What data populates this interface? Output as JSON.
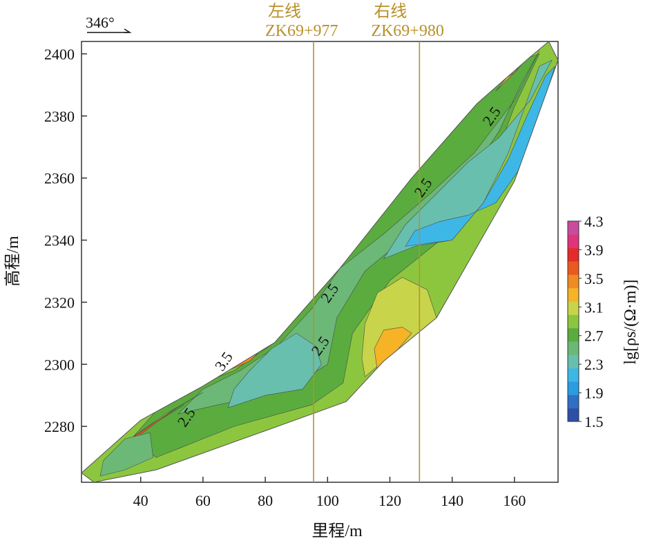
{
  "chart_data": {
    "type": "heatmap",
    "xlabel": "里程/m",
    "ylabel": "高程/m",
    "xlim": [
      21,
      174
    ],
    "ylim": [
      2262,
      2404
    ],
    "xticks": [
      40,
      60,
      80,
      100,
      120,
      140,
      160
    ],
    "yticks": [
      2280,
      2300,
      2320,
      2340,
      2360,
      2380,
      2400
    ],
    "direction_label": "346°",
    "survey_lines": [
      {
        "name": "左线",
        "station": "ZK69+977",
        "x": 95.5
      },
      {
        "name": "右线",
        "station": "ZK69+980",
        "x": 129.5
      }
    ],
    "colorbar": {
      "label": "lg[ρs/(Ω·m)]",
      "ticks": [
        "4.3",
        "3.9",
        "3.5",
        "3.1",
        "2.7",
        "2.3",
        "1.9",
        "1.5"
      ],
      "levels": [
        {
          "value": 1.5,
          "color": "#2d4fa8"
        },
        {
          "value": 1.7,
          "color": "#2f6fc4"
        },
        {
          "value": 1.9,
          "color": "#2a9ce0"
        },
        {
          "value": 2.1,
          "color": "#3db7e6"
        },
        {
          "value": 2.3,
          "color": "#68bfae"
        },
        {
          "value": 2.5,
          "color": "#6cb877"
        },
        {
          "value": 2.7,
          "color": "#5aac3e"
        },
        {
          "value": 2.9,
          "color": "#8cc63f"
        },
        {
          "value": 3.1,
          "color": "#c8d44a"
        },
        {
          "value": 3.3,
          "color": "#f5b325"
        },
        {
          "value": 3.5,
          "color": "#f08a22"
        },
        {
          "value": 3.7,
          "color": "#ea5a20"
        },
        {
          "value": 3.9,
          "color": "#e52a2a"
        },
        {
          "value": 4.1,
          "color": "#e0337a"
        },
        {
          "value": 4.3,
          "color": "#c94a9e"
        }
      ]
    },
    "contour_labels": [
      {
        "text": "2.5",
        "x": 154,
        "y": 2379
      },
      {
        "text": "2.5",
        "x": 132,
        "y": 2356
      },
      {
        "text": "2.5",
        "x": 102,
        "y": 2322
      },
      {
        "text": "2.5",
        "x": 99,
        "y": 2305
      },
      {
        "text": "3.5",
        "x": 68,
        "y": 2300
      },
      {
        "text": "2.5",
        "x": 56,
        "y": 2282
      }
    ],
    "section_outline": [
      [
        21,
        2265
      ],
      [
        25,
        2262
      ],
      [
        45,
        2266
      ],
      [
        95,
        2284
      ],
      [
        106,
        2288
      ],
      [
        118,
        2301
      ],
      [
        135,
        2315
      ],
      [
        160,
        2359
      ],
      [
        174,
        2398
      ],
      [
        171,
        2404
      ],
      [
        165,
        2399
      ],
      [
        148,
        2384
      ],
      [
        127,
        2360
      ],
      [
        104,
        2331
      ],
      [
        83,
        2307
      ],
      [
        60,
        2293
      ],
      [
        40,
        2282
      ],
      [
        21,
        2265
      ]
    ],
    "regions": [
      {
        "level": 2.9,
        "points": [
          [
            21,
            2265
          ],
          [
            25,
            2262
          ],
          [
            45,
            2266
          ],
          [
            95,
            2284
          ],
          [
            106,
            2288
          ],
          [
            118,
            2301
          ],
          [
            135,
            2315
          ],
          [
            160,
            2359
          ],
          [
            174,
            2398
          ],
          [
            171,
            2404
          ],
          [
            165,
            2399
          ],
          [
            148,
            2384
          ],
          [
            127,
            2360
          ],
          [
            104,
            2331
          ],
          [
            83,
            2307
          ],
          [
            60,
            2293
          ],
          [
            40,
            2282
          ],
          [
            21,
            2265
          ]
        ]
      },
      {
        "level": 2.7,
        "points": [
          [
            45,
            2270
          ],
          [
            70,
            2280
          ],
          [
            95,
            2287
          ],
          [
            105,
            2294
          ],
          [
            108,
            2310
          ],
          [
            120,
            2327
          ],
          [
            140,
            2343
          ],
          [
            152,
            2362
          ],
          [
            160,
            2383
          ],
          [
            168,
            2400
          ],
          [
            165,
            2399
          ],
          [
            148,
            2384
          ],
          [
            127,
            2360
          ],
          [
            104,
            2331
          ],
          [
            83,
            2307
          ],
          [
            70,
            2298
          ],
          [
            55,
            2292
          ],
          [
            45,
            2285
          ],
          [
            37,
            2276
          ]
        ]
      },
      {
        "level": 2.5,
        "points": [
          [
            52,
            2284
          ],
          [
            65,
            2287
          ],
          [
            80,
            2290
          ],
          [
            92,
            2295
          ],
          [
            100,
            2300
          ],
          [
            103,
            2315
          ],
          [
            112,
            2330
          ],
          [
            130,
            2345
          ],
          [
            145,
            2360
          ],
          [
            155,
            2375
          ],
          [
            162,
            2390
          ],
          [
            168,
            2401
          ],
          [
            160,
            2385
          ],
          [
            147,
            2368
          ],
          [
            133,
            2355
          ],
          [
            118,
            2342
          ],
          [
            104,
            2331
          ],
          [
            95,
            2318
          ],
          [
            84,
            2306
          ],
          [
            72,
            2298
          ],
          [
            60,
            2292
          ]
        ]
      },
      {
        "level": 2.3,
        "points": [
          [
            68,
            2286
          ],
          [
            80,
            2290
          ],
          [
            92,
            2292
          ],
          [
            98,
            2300
          ],
          [
            96,
            2306
          ],
          [
            90,
            2310
          ],
          [
            82,
            2305
          ],
          [
            75,
            2298
          ],
          [
            70,
            2292
          ]
        ]
      },
      {
        "level": 2.3,
        "points": [
          [
            118,
            2334
          ],
          [
            128,
            2338
          ],
          [
            140,
            2340
          ],
          [
            150,
            2352
          ],
          [
            158,
            2368
          ],
          [
            163,
            2382
          ],
          [
            168,
            2396
          ],
          [
            172,
            2398
          ],
          [
            165,
            2385
          ],
          [
            155,
            2373
          ],
          [
            145,
            2365
          ],
          [
            135,
            2355
          ],
          [
            125,
            2345
          ]
        ]
      },
      {
        "level": 2.1,
        "points": [
          [
            125,
            2338
          ],
          [
            140,
            2340
          ],
          [
            150,
            2352
          ],
          [
            158,
            2366
          ],
          [
            164,
            2380
          ],
          [
            170,
            2393
          ],
          [
            173,
            2396
          ],
          [
            168,
            2380
          ],
          [
            161,
            2362
          ],
          [
            154,
            2352
          ],
          [
            145,
            2348
          ],
          [
            136,
            2346
          ],
          [
            128,
            2343
          ]
        ]
      },
      {
        "level": 3.1,
        "points": [
          [
            112,
            2296
          ],
          [
            118,
            2301
          ],
          [
            128,
            2308
          ],
          [
            135,
            2315
          ],
          [
            132,
            2324
          ],
          [
            124,
            2328
          ],
          [
            116,
            2323
          ],
          [
            112,
            2313
          ],
          [
            111,
            2302
          ]
        ]
      },
      {
        "level": 3.3,
        "points": [
          [
            116,
            2298
          ],
          [
            121,
            2303
          ],
          [
            127,
            2310
          ],
          [
            124,
            2312
          ],
          [
            118,
            2311
          ],
          [
            115,
            2305
          ]
        ]
      },
      {
        "level": 3.1,
        "points": [
          [
            58,
            2293
          ],
          [
            68,
            2299
          ],
          [
            78,
            2304
          ],
          [
            82,
            2308
          ],
          [
            76,
            2303
          ],
          [
            66,
            2297
          ]
        ]
      },
      {
        "level": 3.5,
        "points": [
          [
            62,
            2296
          ],
          [
            70,
            2300
          ],
          [
            78,
            2304
          ],
          [
            75,
            2301
          ],
          [
            68,
            2298
          ]
        ]
      },
      {
        "level": 3.9,
        "points": [
          [
            55,
            2291
          ],
          [
            62,
            2295
          ],
          [
            66,
            2298
          ],
          [
            60,
            2294
          ]
        ]
      },
      {
        "level": 3.3,
        "points": [
          [
            30,
            2270
          ],
          [
            40,
            2278
          ],
          [
            50,
            2285
          ],
          [
            60,
            2291
          ],
          [
            48,
            2284
          ],
          [
            38,
            2277
          ]
        ]
      },
      {
        "level": 3.7,
        "points": [
          [
            34,
            2274
          ],
          [
            44,
            2281
          ],
          [
            54,
            2287
          ],
          [
            46,
            2282
          ],
          [
            38,
            2276
          ]
        ]
      },
      {
        "level": 3.3,
        "points": [
          [
            154,
            2388
          ],
          [
            158,
            2393
          ],
          [
            162,
            2398
          ],
          [
            166,
            2401
          ],
          [
            161,
            2395
          ],
          [
            156,
            2390
          ]
        ]
      },
      {
        "level": 3.5,
        "points": [
          [
            157,
            2392
          ],
          [
            161,
            2396
          ],
          [
            164,
            2399
          ],
          [
            160,
            2394
          ]
        ]
      },
      {
        "level": 2.5,
        "points": [
          [
            27,
            2264
          ],
          [
            35,
            2266
          ],
          [
            44,
            2270
          ],
          [
            43,
            2278
          ],
          [
            35,
            2276
          ],
          [
            28,
            2269
          ]
        ]
      }
    ]
  }
}
